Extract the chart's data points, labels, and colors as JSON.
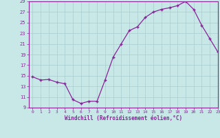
{
  "x": [
    0,
    1,
    2,
    3,
    4,
    5,
    6,
    7,
    8,
    9,
    10,
    11,
    12,
    13,
    14,
    15,
    16,
    17,
    18,
    19,
    20,
    21,
    22,
    23
  ],
  "y": [
    14.8,
    14.2,
    14.3,
    13.8,
    13.5,
    10.5,
    9.8,
    10.2,
    10.2,
    14.2,
    18.5,
    21.0,
    23.5,
    24.2,
    26.0,
    27.0,
    27.5,
    27.8,
    28.2,
    29.0,
    27.5,
    24.5,
    22.0,
    19.5
  ],
  "line_color": "#882299",
  "marker": "+",
  "bg_color": "#c8e8e8",
  "grid_color": "#aacccc",
  "xlabel": "Windchill (Refroidissement éolien,°C)",
  "xlabel_color": "#882299",
  "tick_color": "#882299",
  "ylim": [
    9,
    29
  ],
  "xlim": [
    -0.5,
    23
  ],
  "yticks": [
    9,
    11,
    13,
    15,
    17,
    19,
    21,
    23,
    25,
    27,
    29
  ],
  "xticks": [
    0,
    1,
    2,
    3,
    4,
    5,
    6,
    7,
    8,
    9,
    10,
    11,
    12,
    13,
    14,
    15,
    16,
    17,
    18,
    19,
    20,
    21,
    22,
    23
  ]
}
